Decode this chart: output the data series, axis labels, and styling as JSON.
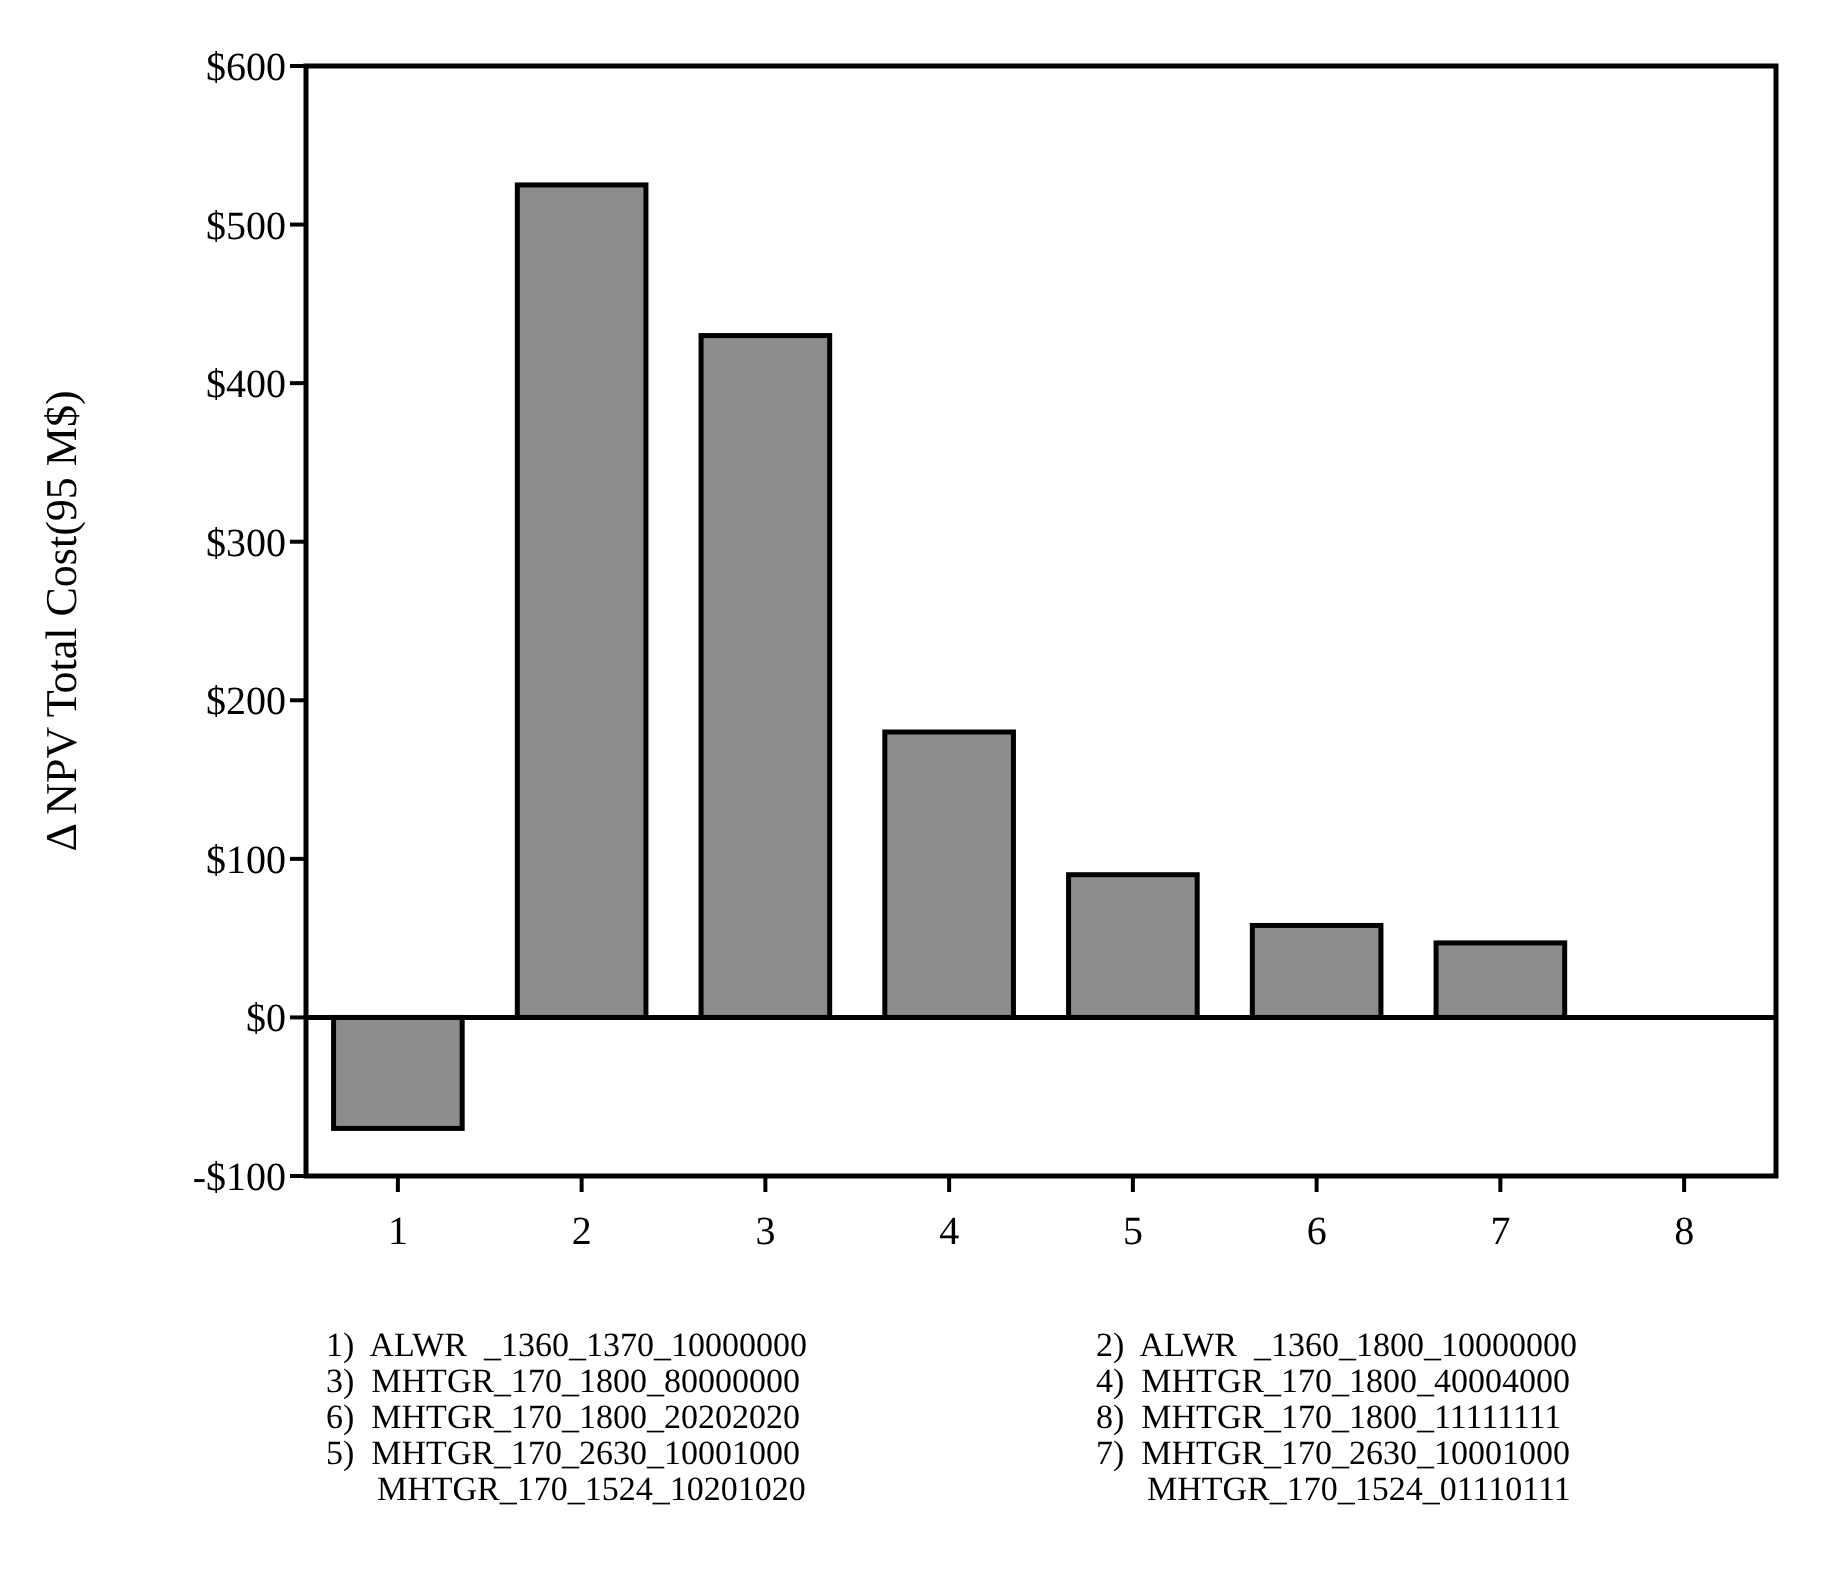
{
  "chart_data": {
    "type": "bar",
    "ylabel": "Δ NPV Total Cost(95 M$)",
    "categories": [
      "1",
      "2",
      "3",
      "4",
      "5",
      "6",
      "7",
      "8"
    ],
    "values": [
      -70,
      525,
      430,
      180,
      90,
      58,
      47,
      0
    ],
    "color": "#8c8c8c",
    "ylim": [
      -100,
      600
    ],
    "yticks": [
      {
        "value": -100,
        "label": "-$100"
      },
      {
        "value": 0,
        "label": "$0"
      },
      {
        "value": 100,
        "label": "$100"
      },
      {
        "value": 200,
        "label": "$200"
      },
      {
        "value": 300,
        "label": "$300"
      },
      {
        "value": 400,
        "label": "$400"
      },
      {
        "value": 500,
        "label": "$500"
      },
      {
        "value": 600,
        "label": "$600"
      }
    ],
    "annotations": [
      "1)  ALWR  _1360_1370_10000000",
      "2)  ALWR  _1360_1800_10000000",
      "3)  MHTGR_170_1800_80000000",
      "4)  MHTGR_170_1800_40004000",
      "6)  MHTGR_170_1800_20202020",
      "8)  MHTGR_170_1800_11111111",
      "5)  MHTGR_170_2630_10001000\n      MHTGR_170_1524_10201020",
      "7)  MHTGR_170_2630_10001000\n      MHTGR_170_1524_01110111"
    ]
  }
}
